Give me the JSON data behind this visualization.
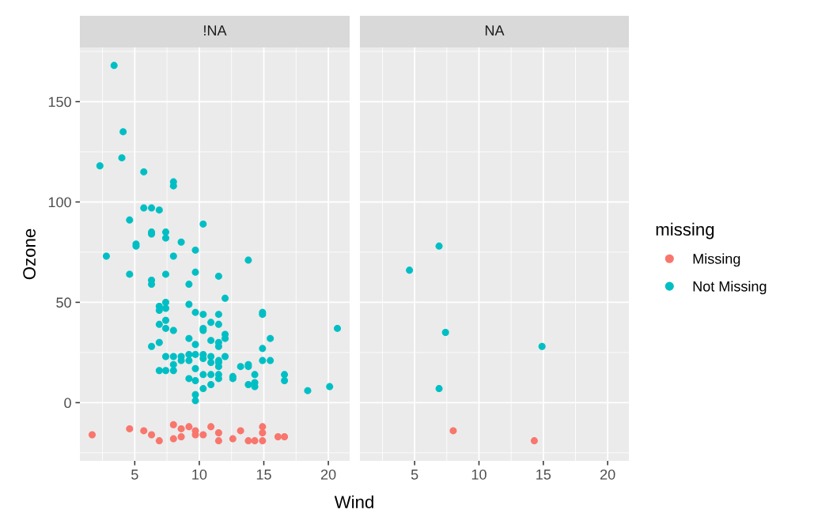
{
  "chart_data": [
    {
      "type": "scatter",
      "title": "!NA",
      "legend_title": "missing",
      "legend": "right",
      "xlabel": "Wind",
      "ylabel": "Ozone",
      "xlim": [
        0.75,
        21.65
      ],
      "ylim": [
        -29,
        177
      ],
      "xticks": [
        5,
        10,
        15,
        20
      ],
      "yticks": [
        0,
        50,
        100,
        150
      ],
      "grid": true,
      "marker": "circle",
      "series": [
        {
          "name": "Missing",
          "color": "#f8766d",
          "x": [
            1.7,
            4.6,
            5.7,
            6.3,
            6.9,
            8.0,
            8.0,
            8.6,
            8.6,
            9.2,
            9.7,
            9.7,
            10.3,
            10.9,
            11.5,
            11.5,
            12.6,
            13.2,
            13.8,
            14.3,
            14.9,
            14.9,
            14.9,
            16.1,
            16.6
          ],
          "values": [
            -16,
            -13,
            -14,
            -16,
            -19,
            -11,
            -18,
            -13,
            -17,
            -12,
            -14,
            -16,
            -16,
            -12,
            -15,
            -19,
            -18,
            -14,
            -19,
            -19,
            -12,
            -15,
            -19,
            -17,
            -17
          ]
        },
        {
          "name": "Not Missing",
          "color": "#00bfc4",
          "x": [
            3.4,
            4.1,
            4.0,
            2.3,
            5.7,
            8.0,
            8.0,
            5.7,
            6.3,
            6.9,
            4.6,
            10.3,
            6.3,
            6.3,
            7.4,
            7.4,
            8.6,
            5.1,
            5.1,
            9.7,
            2.8,
            8.0,
            13.8,
            4.6,
            7.4,
            9.7,
            11.5,
            6.3,
            6.3,
            9.2,
            12.0,
            7.4,
            6.9,
            7.4,
            6.9,
            9.2,
            9.7,
            10.3,
            11.5,
            14.9,
            14.9,
            7.4,
            6.9,
            7.4,
            8.0,
            10.9,
            11.5,
            10.3,
            10.3,
            12.0,
            12.0,
            20.7,
            9.2,
            10.9,
            11.5,
            11.5,
            9.7,
            15.5,
            6.9,
            6.3,
            14.9,
            7.4,
            8.0,
            8.6,
            8.6,
            9.2,
            9.2,
            9.7,
            9.7,
            10.3,
            10.3,
            10.9,
            10.9,
            11.5,
            11.5,
            11.5,
            12.0,
            6.9,
            7.4,
            8.0,
            8.0,
            13.2,
            13.8,
            13.8,
            14.9,
            15.5,
            10.3,
            10.9,
            11.5,
            11.5,
            9.2,
            9.7,
            12.6,
            12.6,
            14.3,
            14.3,
            13.8,
            14.3,
            16.6,
            16.6,
            10.3,
            10.9,
            18.4,
            20.1,
            9.7,
            9.7
          ],
          "values": [
            168,
            135,
            122,
            118,
            115,
            110,
            108,
            97,
            97,
            96,
            91,
            89,
            85,
            84,
            85,
            82,
            80,
            79,
            78,
            76,
            73,
            73,
            71,
            64,
            64,
            65,
            63,
            61,
            59,
            59,
            52,
            50,
            48,
            47,
            46,
            49,
            45,
            44,
            44,
            45,
            44,
            41,
            39,
            37,
            36,
            40,
            39,
            37,
            36,
            34,
            32,
            37,
            32,
            31,
            30,
            28,
            29,
            32,
            30,
            28,
            27,
            23,
            23,
            23,
            21,
            24,
            21,
            24,
            17,
            24,
            22,
            23,
            20,
            21,
            20,
            18,
            23,
            16,
            16,
            16,
            19,
            18,
            19,
            18,
            21,
            21,
            14,
            14,
            14,
            12,
            12,
            11,
            13,
            12,
            14,
            10,
            9,
            8,
            14,
            11,
            7,
            9,
            6,
            8,
            4,
            1
          ]
        }
      ]
    },
    {
      "type": "scatter",
      "title": "NA",
      "tick_labels": "x",
      "xlim": [
        0.75,
        21.65
      ],
      "ylim": [
        -29,
        177
      ],
      "xticks": [
        5,
        10,
        15,
        20
      ],
      "yticks": [
        0,
        50,
        100,
        150
      ],
      "grid": true,
      "marker": "circle",
      "series": [
        {
          "color": "#f8766d",
          "x": [
            8.0,
            14.3
          ],
          "values": [
            -14,
            -19
          ]
        },
        {
          "color": "#00bfc4",
          "x": [
            6.9,
            4.6,
            7.4,
            14.9,
            6.9
          ],
          "values": [
            78,
            66,
            35,
            28,
            7
          ]
        }
      ]
    }
  ]
}
